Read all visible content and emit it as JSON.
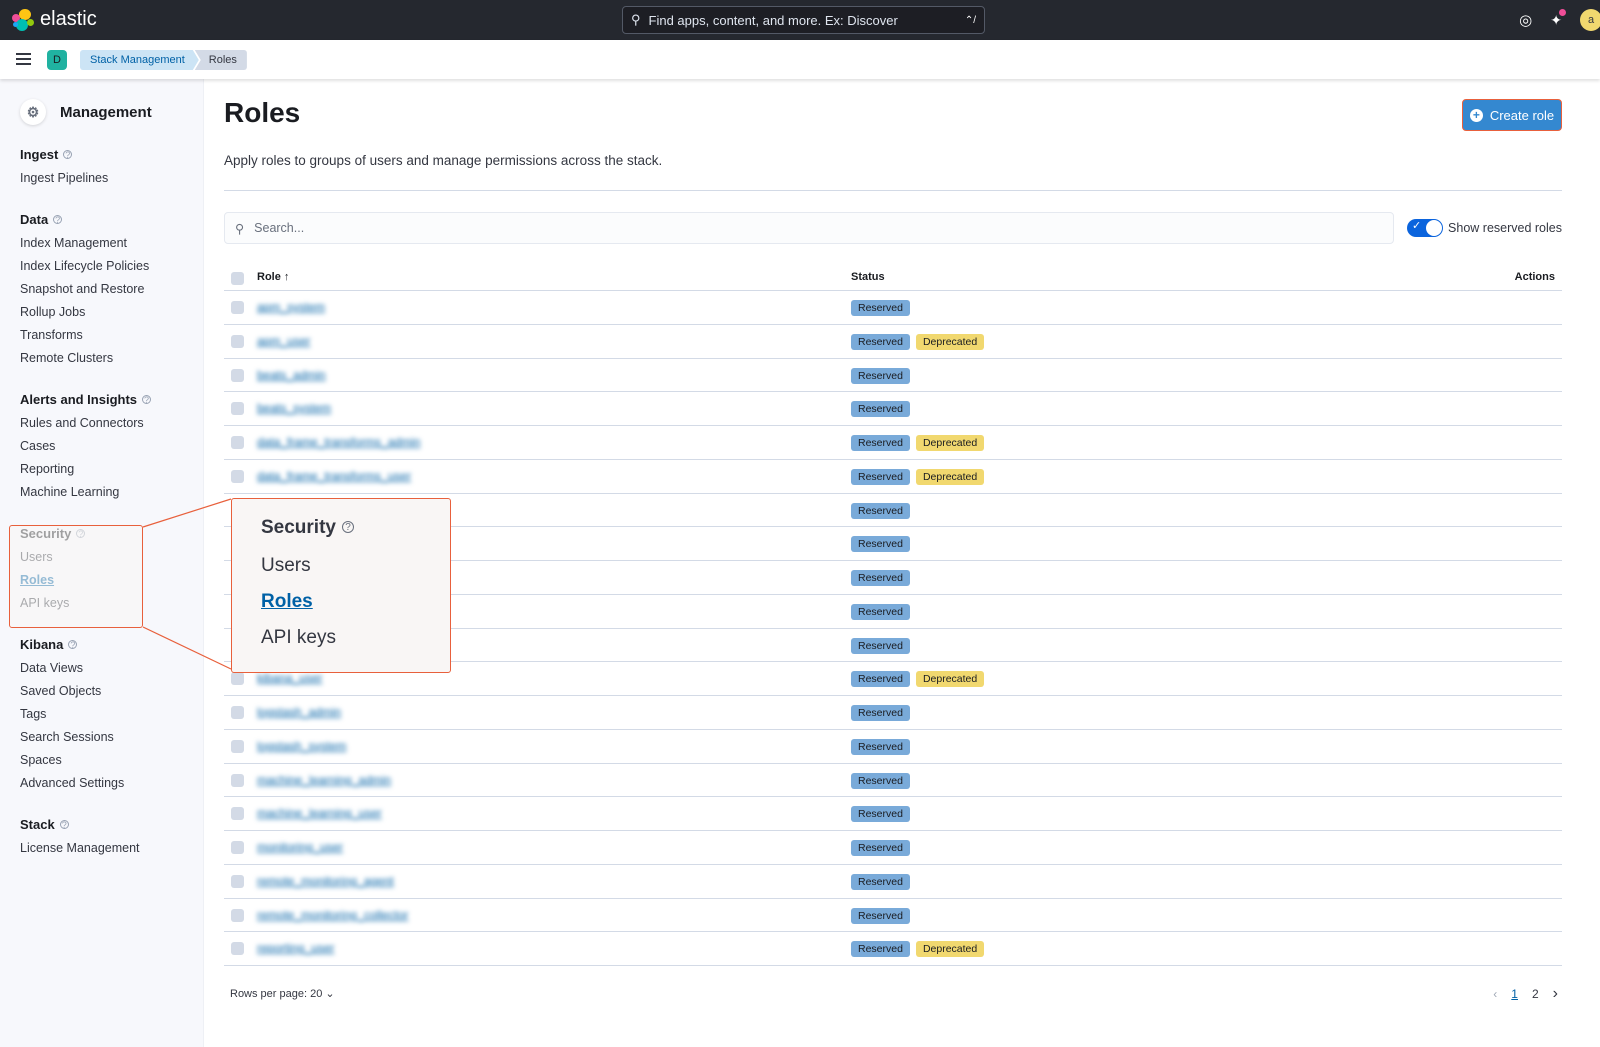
{
  "header": {
    "brand": "elastic",
    "search_placeholder": "Find apps, content, and more. Ex: Discover",
    "search_shortcut": "⌃/",
    "user_initial": "a",
    "space_initial": "D",
    "icons": [
      "help-icon",
      "news-feed-icon",
      "user-avatar"
    ]
  },
  "breadcrumbs": [
    "Stack Management",
    "Roles"
  ],
  "sidebar": {
    "title": "Management",
    "groups": [
      {
        "label": "Ingest",
        "items": [
          "Ingest Pipelines"
        ]
      },
      {
        "label": "Data",
        "items": [
          "Index Management",
          "Index Lifecycle Policies",
          "Snapshot and Restore",
          "Rollup Jobs",
          "Transforms",
          "Remote Clusters"
        ]
      },
      {
        "label": "Alerts and Insights",
        "items": [
          "Rules and Connectors",
          "Cases",
          "Reporting",
          "Machine Learning"
        ]
      },
      {
        "label": "Security",
        "items": [
          "Users",
          "Roles",
          "API keys"
        ],
        "active": "Roles"
      },
      {
        "label": "Kibana",
        "items": [
          "Data Views",
          "Saved Objects",
          "Tags",
          "Search Sessions",
          "Spaces",
          "Advanced Settings"
        ]
      },
      {
        "label": "Stack",
        "items": [
          "License Management"
        ]
      }
    ]
  },
  "main": {
    "title": "Roles",
    "description": "Apply roles to groups of users and manage permissions across the stack.",
    "create_button": "Create role",
    "search_placeholder": "Search...",
    "toggle_label": "Show reserved roles",
    "toggle_on": true,
    "columns": {
      "role": "Role",
      "status": "Status",
      "actions": "Actions"
    },
    "sort_indicator": "↑",
    "rows": [
      {
        "name": "apm_system",
        "badges": [
          "Reserved"
        ]
      },
      {
        "name": "apm_user",
        "badges": [
          "Reserved",
          "Deprecated"
        ]
      },
      {
        "name": "beats_admin",
        "badges": [
          "Reserved"
        ]
      },
      {
        "name": "beats_system",
        "badges": [
          "Reserved"
        ]
      },
      {
        "name": "data_frame_transforms_admin",
        "badges": [
          "Reserved",
          "Deprecated"
        ]
      },
      {
        "name": "data_frame_transforms_user",
        "badges": [
          "Reserved",
          "Deprecated"
        ]
      },
      {
        "name": "",
        "badges": [
          "Reserved"
        ]
      },
      {
        "name": "",
        "badges": [
          "Reserved"
        ]
      },
      {
        "name": "",
        "badges": [
          "Reserved"
        ]
      },
      {
        "name": "",
        "badges": [
          "Reserved"
        ]
      },
      {
        "name": "",
        "badges": [
          "Reserved"
        ]
      },
      {
        "name": "kibana_user",
        "badges": [
          "Reserved",
          "Deprecated"
        ]
      },
      {
        "name": "logstash_admin",
        "badges": [
          "Reserved"
        ]
      },
      {
        "name": "logstash_system",
        "badges": [
          "Reserved"
        ]
      },
      {
        "name": "machine_learning_admin",
        "badges": [
          "Reserved"
        ]
      },
      {
        "name": "machine_learning_user",
        "badges": [
          "Reserved"
        ]
      },
      {
        "name": "monitoring_user",
        "badges": [
          "Reserved"
        ]
      },
      {
        "name": "remote_monitoring_agent",
        "badges": [
          "Reserved"
        ]
      },
      {
        "name": "remote_monitoring_collector",
        "badges": [
          "Reserved"
        ]
      },
      {
        "name": "reporting_user",
        "badges": [
          "Reserved",
          "Deprecated"
        ]
      }
    ],
    "rows_per_page": "Rows per page: 20",
    "pages": [
      "1",
      "2"
    ],
    "current_page": "1"
  },
  "callout": {
    "heading": "Security",
    "items": [
      "Users",
      "Roles",
      "API keys"
    ],
    "active": "Roles"
  },
  "colors": {
    "reserved": "#79aad9",
    "deprecated": "#f1d86f",
    "accent": "#0061a6",
    "highlight": "#e8603c",
    "topbar": "#25282f"
  }
}
